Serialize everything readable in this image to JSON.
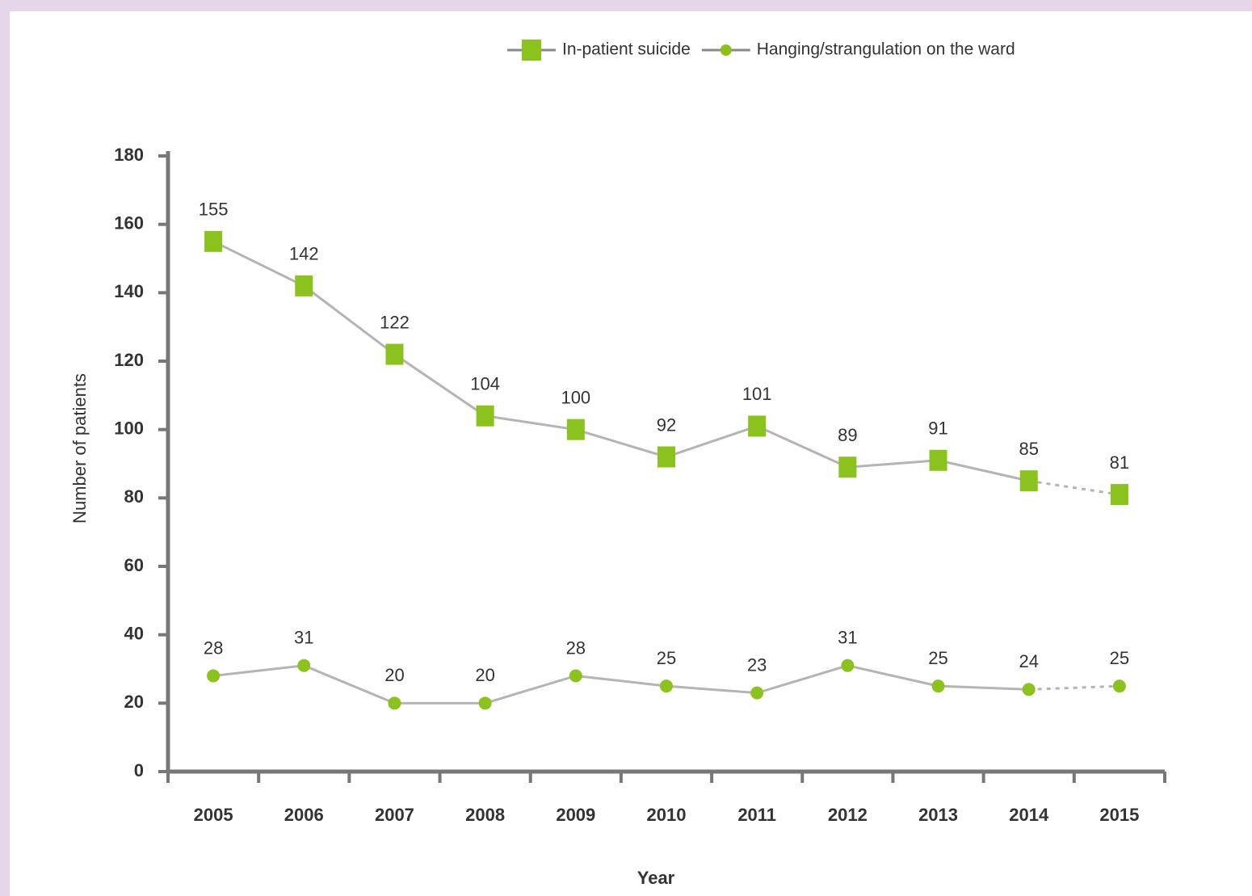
{
  "chart_data": {
    "type": "line",
    "x_label": "Year",
    "y_label": "Number of patients",
    "categories": [
      "2005",
      "2006",
      "2007",
      "2008",
      "2009",
      "2010",
      "2011",
      "2012",
      "2013",
      "2014",
      "2015"
    ],
    "series": [
      {
        "name": "In-patient suicide",
        "color": "#8cc21e",
        "marker": "square",
        "values": [
          155,
          142,
          122,
          104,
          100,
          92,
          101,
          89,
          91,
          85,
          81
        ]
      },
      {
        "name": "Hanging/strangulation on the ward",
        "color": "#8cc21e",
        "marker": "circle",
        "values": [
          28,
          31,
          20,
          20,
          28,
          25,
          23,
          31,
          25,
          24,
          25
        ]
      }
    ],
    "line_color": "#b4b4b4",
    "dashed_last_segment": true,
    "ylim": [
      0,
      180
    ],
    "yticks": [
      0,
      20,
      40,
      60,
      80,
      100,
      120,
      140,
      160,
      180
    ],
    "legend": "top-right",
    "grid": false
  }
}
